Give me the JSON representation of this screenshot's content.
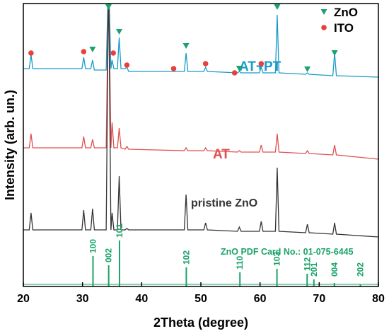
{
  "chart_data": {
    "type": "line",
    "xlabel": "2Theta (degree)",
    "ylabel": "Intensity (arb. un.)",
    "xlim": [
      20,
      80
    ],
    "xticks": [
      20,
      30,
      40,
      50,
      60,
      70,
      80
    ],
    "ylim": [
      0,
      100
    ],
    "series": [
      {
        "name": "AT+PT",
        "color": "#1a9bc9",
        "x": [
          20,
          21.0,
          21.3,
          21.6,
          29.9,
          30.2,
          30.5,
          31.4,
          31.7,
          32.0,
          34.0,
          34.4,
          34.8,
          35.0,
          35.3,
          35.9,
          36.2,
          36.5,
          37.2,
          37.5,
          37.8,
          47.2,
          47.5,
          47.8,
          50.5,
          50.8,
          51.1,
          56.2,
          56.5,
          56.8,
          59.9,
          60.2,
          60.5,
          62.6,
          62.9,
          63.2,
          67.7,
          68.0,
          68.3,
          72.3,
          72.6,
          72.9,
          80
        ],
        "values": [
          77,
          77,
          82,
          77,
          77,
          81,
          77,
          77,
          80,
          76.5,
          76.5,
          110,
          77,
          80,
          77,
          77,
          88,
          77,
          77,
          77.5,
          76,
          76,
          82.5,
          76,
          76,
          77.5,
          76,
          75.5,
          76,
          75.5,
          75.5,
          77.5,
          75.5,
          75.5,
          96,
          75.5,
          75,
          75.5,
          75,
          74.5,
          82.5,
          74.5,
          74
        ]
      },
      {
        "name": "AT",
        "color": "#e05050",
        "x": [
          20,
          21.0,
          21.3,
          21.6,
          29.9,
          30.2,
          30.5,
          31.4,
          31.7,
          32.0,
          34.0,
          34.4,
          34.8,
          35.0,
          35.3,
          35.9,
          36.2,
          36.5,
          37.2,
          37.5,
          37.8,
          47.2,
          47.5,
          47.8,
          50.5,
          50.8,
          51.1,
          56.2,
          56.5,
          56.8,
          59.9,
          60.2,
          60.5,
          62.6,
          62.9,
          63.2,
          67.7,
          68.0,
          68.3,
          72.3,
          72.6,
          72.9,
          80
        ],
        "values": [
          49,
          49,
          54,
          49,
          49,
          53,
          49,
          49,
          52,
          49,
          49,
          110,
          49,
          58,
          49,
          49,
          56,
          49,
          48.5,
          49.5,
          48.5,
          48,
          49,
          48,
          48,
          49,
          48,
          47.5,
          48,
          47.5,
          47.5,
          50,
          47.5,
          47.5,
          54,
          47.5,
          47,
          48,
          47,
          46.5,
          50,
          46.5,
          45
        ]
      },
      {
        "name": "pristine ZnO",
        "color": "#333333",
        "x": [
          20,
          21.0,
          21.3,
          21.6,
          29.9,
          30.2,
          30.5,
          31.4,
          31.7,
          32.0,
          34.0,
          34.4,
          34.8,
          35.0,
          35.3,
          35.9,
          36.2,
          36.5,
          37.2,
          37.5,
          37.8,
          47.2,
          47.5,
          47.8,
          50.5,
          50.8,
          51.1,
          56.2,
          56.5,
          56.8,
          59.9,
          60.2,
          60.5,
          62.6,
          62.9,
          63.2,
          67.7,
          68.0,
          68.3,
          72.3,
          72.6,
          72.9,
          80
        ],
        "values": [
          20,
          20,
          26,
          20,
          20,
          27,
          20,
          20,
          27.5,
          20,
          20,
          110,
          20,
          26,
          20,
          20,
          39,
          20,
          20,
          20.5,
          20,
          20,
          32.5,
          20,
          20,
          22.5,
          20,
          19.5,
          21,
          19.5,
          19.5,
          23,
          19.5,
          19.5,
          42,
          19.5,
          19,
          22,
          19,
          18.5,
          22.5,
          18.5,
          17.5
        ]
      }
    ],
    "markers": [
      {
        "name": "ZnO",
        "shape": "triangle",
        "color": "#1aa36a",
        "x": [
          31.7,
          34.4,
          36.2,
          47.5,
          56.5,
          62.9,
          68.0,
          72.6
        ],
        "values": [
          83.75,
          98.75,
          90,
          85,
          77,
          98.75,
          76.75,
          82.5
        ]
      },
      {
        "name": "ITO",
        "shape": "circle",
        "color": "#e8403a",
        "x": [
          21.3,
          30.2,
          35.2,
          37.5,
          45.4,
          50.8,
          55.7,
          60.2
        ],
        "values": [
          82.5,
          83,
          82.5,
          78.25,
          77,
          78.75,
          75.5,
          78.75
        ]
      }
    ],
    "reference": {
      "name": "ZnO PDF Card No.: 01-075-6445",
      "color": "#1aa36a",
      "x": [
        31.77,
        34.42,
        36.25,
        47.54,
        56.6,
        62.86,
        67.96,
        69.1,
        72.56,
        76.95
      ],
      "values": [
        10.75,
        7.5,
        16.25,
        6.75,
        5,
        6.25,
        4.5,
        2.5,
        1.25,
        0.75
      ],
      "labels": [
        "100",
        "002",
        "101",
        "102",
        "110",
        "103",
        "112",
        "201",
        "004",
        "202"
      ]
    }
  }
}
